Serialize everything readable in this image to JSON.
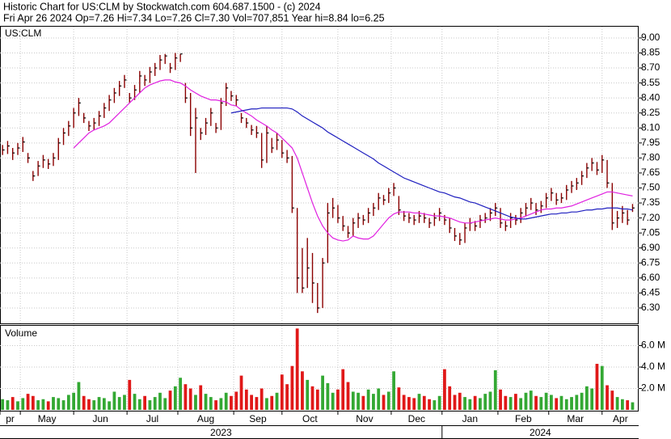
{
  "header": {
    "title": "Historic Chart for US:CLM by Stockwatch.com 604.687.1500 - (c) 2024",
    "quote": "Fri Apr 26 2024  Op=7.26  Hi=7.34  Lo=7.26  Cl=7.30  Vol=707,851  Year hi=8.84  lo=6.25"
  },
  "chart_data": [
    {
      "type": "ohlc",
      "title": "US:CLM",
      "color": "#8b0000",
      "tick_color": "#000000",
      "grid": true,
      "xlim": [
        -0.5,
        125.2
      ],
      "xticks": [
        {
          "value": -0.5,
          "label": "pr"
        },
        {
          "value": 3.5,
          "label": "May"
        },
        {
          "value": 14,
          "label": "Jun"
        },
        {
          "value": 24.5,
          "label": "Jul"
        },
        {
          "value": 34.5,
          "label": "Aug"
        },
        {
          "value": 45.5,
          "label": "Sep"
        },
        {
          "value": 55,
          "label": "Oct"
        },
        {
          "value": 66,
          "label": "Nov"
        },
        {
          "value": 76.5,
          "label": "Dec"
        },
        {
          "value": 86.5,
          "label": "Jan"
        },
        {
          "value": 97.5,
          "label": "Feb"
        },
        {
          "value": 107.5,
          "label": "Mar"
        },
        {
          "value": 118,
          "label": "Apr"
        }
      ],
      "year_ticks": [
        {
          "value": -0.5,
          "label": "2023"
        },
        {
          "value": 86.5,
          "label": "2024"
        }
      ],
      "ylim": [
        6.146,
        9.04
      ],
      "yticks": [
        {
          "value": 9.0,
          "label": "9.00"
        },
        8.85,
        {
          "value": 8.7,
          "label": "8.70"
        },
        8.55,
        {
          "value": 8.4,
          "label": "8.40"
        },
        8.25,
        {
          "value": 8.1,
          "label": "8.10"
        },
        7.95,
        {
          "value": 7.8,
          "label": "7.80"
        },
        7.65,
        {
          "value": 7.5,
          "label": "7.50"
        },
        7.35,
        {
          "value": 7.2,
          "label": "7.20"
        },
        7.05,
        {
          "value": 6.9,
          "label": "6.90"
        },
        6.75,
        {
          "value": 6.6,
          "label": "6.60"
        },
        6.45,
        {
          "value": 6.3,
          "label": "6.30"
        }
      ],
      "high": [
        7.93,
        7.97,
        7.9,
        7.95,
        8.01,
        7.85,
        7.67,
        7.77,
        7.83,
        7.79,
        7.85,
        8.0,
        8.1,
        8.17,
        8.3,
        8.4,
        8.25,
        8.17,
        8.2,
        8.27,
        8.35,
        8.43,
        8.5,
        8.57,
        8.63,
        8.45,
        8.53,
        8.67,
        8.63,
        8.71,
        8.75,
        8.83,
        8.84,
        8.75,
        8.85,
        8.84,
        8.55,
        8.45,
        8.3,
        8.1,
        8.2,
        8.3,
        8.15,
        8.4,
        8.55,
        8.47,
        8.43,
        8.25,
        8.2,
        8.13,
        8.12,
        8.05,
        8.12,
        8.0,
        8.05,
        7.98,
        7.88,
        7.82,
        7.3,
        6.9,
        7.0,
        6.85,
        6.55,
        6.8,
        7.35,
        7.4,
        7.33,
        7.22,
        7.12,
        7.2,
        7.25,
        7.23,
        7.3,
        7.35,
        7.45,
        7.43,
        7.5,
        7.55,
        7.42,
        7.27,
        7.25,
        7.23,
        7.27,
        7.25,
        7.2,
        7.25,
        7.3,
        7.23,
        7.2,
        7.1,
        7.05,
        7.15,
        7.2,
        7.17,
        7.23,
        7.25,
        7.3,
        7.35,
        7.3,
        7.17,
        7.25,
        7.23,
        7.3,
        7.35,
        7.4,
        7.35,
        7.37,
        7.45,
        7.5,
        7.45,
        7.45,
        7.53,
        7.57,
        7.6,
        7.67,
        7.75,
        7.8,
        7.76,
        7.83,
        7.78,
        7.55,
        7.27,
        7.32,
        7.28,
        7.34
      ],
      "low": [
        7.83,
        7.84,
        7.78,
        7.83,
        7.86,
        7.75,
        7.57,
        7.62,
        7.7,
        7.69,
        7.72,
        7.78,
        7.93,
        8.02,
        8.1,
        8.22,
        8.15,
        8.07,
        8.08,
        8.12,
        8.2,
        8.27,
        8.35,
        8.42,
        8.5,
        8.35,
        8.38,
        8.45,
        8.52,
        8.55,
        8.62,
        8.68,
        8.74,
        8.65,
        8.68,
        8.76,
        8.35,
        8.02,
        7.65,
        7.98,
        8.03,
        8.12,
        8.05,
        8.08,
        8.32,
        8.37,
        8.32,
        8.15,
        8.1,
        8.03,
        8.0,
        7.7,
        7.75,
        7.85,
        7.88,
        7.8,
        7.75,
        7.25,
        6.45,
        6.45,
        6.5,
        6.35,
        6.25,
        6.3,
        6.75,
        7.2,
        7.15,
        7.07,
        7.0,
        7.02,
        7.1,
        7.13,
        7.15,
        7.22,
        7.28,
        7.33,
        7.35,
        7.42,
        7.23,
        7.17,
        7.15,
        7.13,
        7.15,
        7.15,
        7.1,
        7.12,
        7.17,
        7.13,
        7.05,
        6.97,
        6.93,
        6.95,
        7.07,
        7.07,
        7.1,
        7.15,
        7.17,
        7.22,
        7.1,
        7.07,
        7.1,
        7.13,
        7.15,
        7.22,
        7.28,
        7.23,
        7.25,
        7.3,
        7.37,
        7.33,
        7.35,
        7.38,
        7.45,
        7.48,
        7.53,
        7.6,
        7.67,
        7.63,
        7.65,
        7.5,
        7.08,
        7.1,
        7.15,
        7.13,
        7.26
      ],
      "close": [
        7.88,
        7.92,
        7.85,
        7.9,
        7.96,
        7.8,
        7.62,
        7.72,
        7.78,
        7.74,
        7.8,
        7.95,
        8.05,
        8.12,
        8.25,
        8.35,
        8.2,
        8.12,
        8.15,
        8.22,
        8.3,
        8.38,
        8.45,
        8.52,
        8.58,
        8.4,
        8.48,
        8.62,
        8.58,
        8.66,
        8.7,
        8.78,
        8.82,
        8.7,
        8.8,
        8.84,
        8.4,
        8.1,
        8.2,
        8.05,
        8.15,
        8.25,
        8.1,
        8.35,
        8.5,
        8.42,
        8.38,
        8.2,
        8.15,
        8.08,
        8.05,
        7.78,
        8.05,
        7.9,
        7.98,
        7.85,
        7.8,
        7.3,
        6.6,
        6.5,
        6.7,
        6.55,
        6.3,
        6.75,
        7.25,
        7.3,
        7.2,
        7.12,
        7.05,
        7.15,
        7.2,
        7.18,
        7.25,
        7.3,
        7.4,
        7.38,
        7.45,
        7.5,
        7.28,
        7.22,
        7.2,
        7.18,
        7.22,
        7.2,
        7.15,
        7.2,
        7.25,
        7.18,
        7.1,
        7.02,
        6.98,
        7.1,
        7.15,
        7.12,
        7.18,
        7.2,
        7.25,
        7.3,
        7.15,
        7.12,
        7.2,
        7.18,
        7.25,
        7.3,
        7.35,
        7.28,
        7.32,
        7.4,
        7.45,
        7.38,
        7.4,
        7.48,
        7.52,
        7.55,
        7.62,
        7.7,
        7.75,
        7.68,
        7.78,
        7.55,
        7.15,
        7.2,
        7.25,
        7.18,
        7.3
      ],
      "series": [
        {
          "color": "#e020e0",
          "values": [
            null,
            null,
            null,
            null,
            null,
            null,
            null,
            null,
            null,
            null,
            null,
            null,
            null,
            null,
            7.9,
            7.95,
            8.0,
            8.05,
            8.08,
            8.1,
            8.12,
            8.15,
            8.2,
            8.25,
            8.3,
            8.35,
            8.4,
            8.45,
            8.5,
            8.53,
            8.55,
            8.57,
            8.58,
            8.58,
            8.56,
            8.55,
            8.52,
            8.48,
            8.45,
            8.42,
            8.4,
            8.38,
            8.38,
            8.37,
            8.36,
            8.33,
            8.32,
            8.28,
            8.25,
            8.22,
            8.18,
            8.15,
            8.12,
            8.08,
            8.05,
            8.0,
            7.95,
            7.9,
            7.8,
            7.65,
            7.5,
            7.35,
            7.22,
            7.12,
            7.05,
            7.0,
            6.98,
            6.97,
            6.98,
            7.02,
            7.0,
            6.99,
            6.99,
            7.02,
            7.08,
            7.14,
            7.2,
            7.24,
            7.26,
            7.26,
            7.26,
            7.25,
            7.25,
            7.24,
            7.23,
            7.22,
            7.22,
            7.21,
            7.2,
            7.18,
            7.16,
            7.15,
            7.15,
            7.16,
            7.17,
            7.18,
            7.19,
            7.2,
            7.19,
            7.18,
            7.18,
            7.19,
            7.2,
            7.22,
            7.24,
            7.26,
            7.28,
            7.29,
            7.29,
            7.3,
            7.3,
            7.31,
            7.32,
            7.34,
            7.36,
            7.38,
            7.4,
            7.42,
            7.44,
            7.46,
            7.46,
            7.45,
            7.44,
            7.43,
            7.42
          ]
        },
        {
          "color": "#1f1fbf",
          "values": [
            null,
            null,
            null,
            null,
            null,
            null,
            null,
            null,
            null,
            null,
            null,
            null,
            null,
            null,
            null,
            null,
            null,
            null,
            null,
            null,
            null,
            null,
            null,
            null,
            null,
            null,
            null,
            null,
            null,
            null,
            null,
            null,
            null,
            null,
            null,
            null,
            null,
            null,
            null,
            null,
            null,
            null,
            null,
            null,
            null,
            8.25,
            8.26,
            8.27,
            8.28,
            8.29,
            8.29,
            8.3,
            8.3,
            8.3,
            8.3,
            8.3,
            8.3,
            8.29,
            8.26,
            8.22,
            8.19,
            8.16,
            8.13,
            8.1,
            8.06,
            8.03,
            8.0,
            7.97,
            7.94,
            7.91,
            7.88,
            7.85,
            7.82,
            7.79,
            7.75,
            7.72,
            7.69,
            7.66,
            7.63,
            7.6,
            7.58,
            7.56,
            7.54,
            7.52,
            7.5,
            7.48,
            7.46,
            7.45,
            7.43,
            7.41,
            7.4,
            7.38,
            7.36,
            7.35,
            7.33,
            7.31,
            7.29,
            7.27,
            7.25,
            7.23,
            7.21,
            7.2,
            7.19,
            7.19,
            7.2,
            7.21,
            7.22,
            7.23,
            7.24,
            7.24,
            7.25,
            7.25,
            7.26,
            7.26,
            7.27,
            7.28,
            7.28,
            7.29,
            7.29,
            7.3,
            7.3,
            7.3,
            7.29,
            7.29,
            7.28
          ]
        }
      ]
    },
    {
      "type": "bar",
      "title": "Volume",
      "up_color": "#33a833",
      "down_color": "#e01818",
      "grid": true,
      "ylim": [
        0,
        7.85
      ],
      "yticks": [
        {
          "value": 2,
          "label": "2.0 M"
        },
        {
          "value": 4,
          "label": "4.0 M"
        },
        {
          "value": 6,
          "label": "6.0 M"
        }
      ],
      "values": [
        1.0,
        0.9,
        1.2,
        0.8,
        1.1,
        1.5,
        1.3,
        0.9,
        1.0,
        0.8,
        1.2,
        1.1,
        0.9,
        1.4,
        1.6,
        2.6,
        1.3,
        1.0,
        0.9,
        1.2,
        1.1,
        0.8,
        1.7,
        1.2,
        1.4,
        2.8,
        1.5,
        1.0,
        1.3,
        0.9,
        1.2,
        1.6,
        1.1,
        1.8,
        2.2,
        3.0,
        2.4,
        2.0,
        1.4,
        2.3,
        1.5,
        1.2,
        0.9,
        1.1,
        1.6,
        1.3,
        1.7,
        3.2,
        1.9,
        1.4,
        1.2,
        2.0,
        1.1,
        1.3,
        1.6,
        3.3,
        2.4,
        4.1,
        7.6,
        3.6,
        2.8,
        2.2,
        1.9,
        3.2,
        2.5,
        1.6,
        1.9,
        3.8,
        2.6,
        1.7,
        1.6,
        1.3,
        1.9,
        1.5,
        2.0,
        1.4,
        1.7,
        3.6,
        2.1,
        1.4,
        1.2,
        1.1,
        1.5,
        1.3,
        1.0,
        0.9,
        1.3,
        3.8,
        2.2,
        1.4,
        1.6,
        1.2,
        1.0,
        1.3,
        1.1,
        1.5,
        1.7,
        3.7,
        1.9,
        1.3,
        1.2,
        1.5,
        1.1,
        1.6,
        1.8,
        1.3,
        1.2,
        1.6,
        1.4,
        1.1,
        1.3,
        1.0,
        1.2,
        1.4,
        1.6,
        2.2,
        2.0,
        4.3,
        4.1,
        2.3,
        1.8,
        1.2,
        1.0,
        0.9,
        0.71
      ]
    }
  ]
}
